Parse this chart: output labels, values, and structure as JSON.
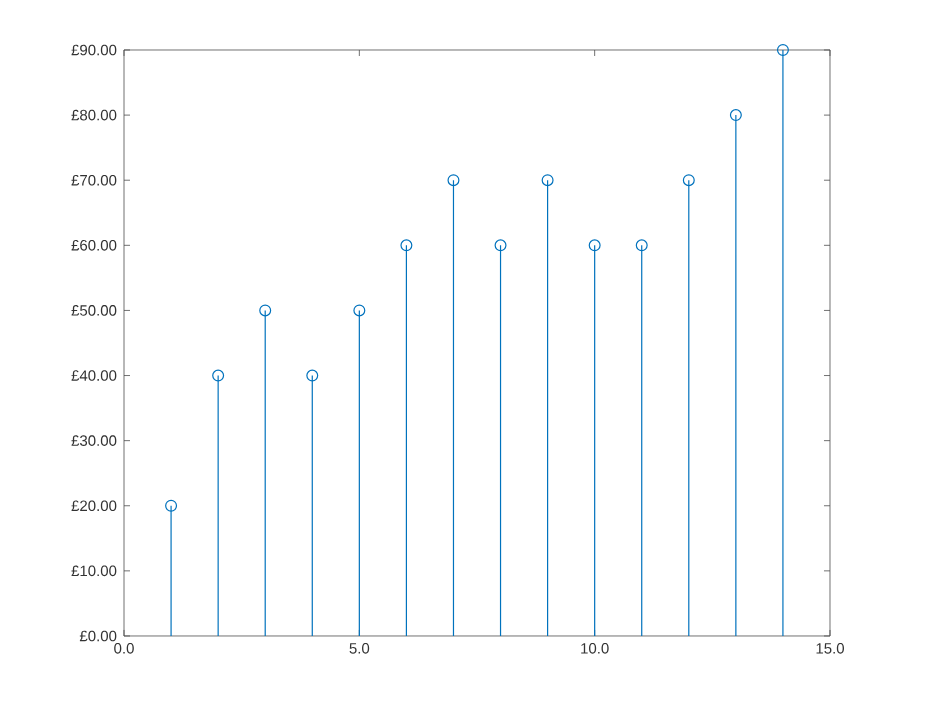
{
  "chart_data": {
    "type": "lollipop",
    "x": [
      1,
      2,
      3,
      4,
      5,
      6,
      7,
      8,
      9,
      10,
      11,
      12,
      13,
      14
    ],
    "values": [
      20,
      40,
      50,
      40,
      50,
      60,
      70,
      60,
      70,
      60,
      60,
      70,
      80,
      90
    ],
    "color": "#0072bd",
    "marker": "circle",
    "line_style": "solid",
    "xlim": [
      0,
      15
    ],
    "xticks": [
      {
        "value": 0,
        "label": "0.0"
      },
      {
        "value": 5,
        "label": "5.0"
      },
      {
        "value": 10,
        "label": "10.0"
      },
      {
        "value": 15,
        "label": "15.0"
      }
    ],
    "ylim": [
      0,
      90
    ],
    "yticks": [
      {
        "value": 0,
        "label": "£0.00"
      },
      {
        "value": 10,
        "label": "£10.00"
      },
      {
        "value": 20,
        "label": "£20.00"
      },
      {
        "value": 30,
        "label": "£30.00"
      },
      {
        "value": 40,
        "label": "£40.00"
      },
      {
        "value": 50,
        "label": "£50.00"
      },
      {
        "value": 60,
        "label": "£60.00"
      },
      {
        "value": 70,
        "label": "£70.00"
      },
      {
        "value": 80,
        "label": "£80.00"
      },
      {
        "value": 90,
        "label": "£90.00"
      }
    ],
    "grid": false
  }
}
